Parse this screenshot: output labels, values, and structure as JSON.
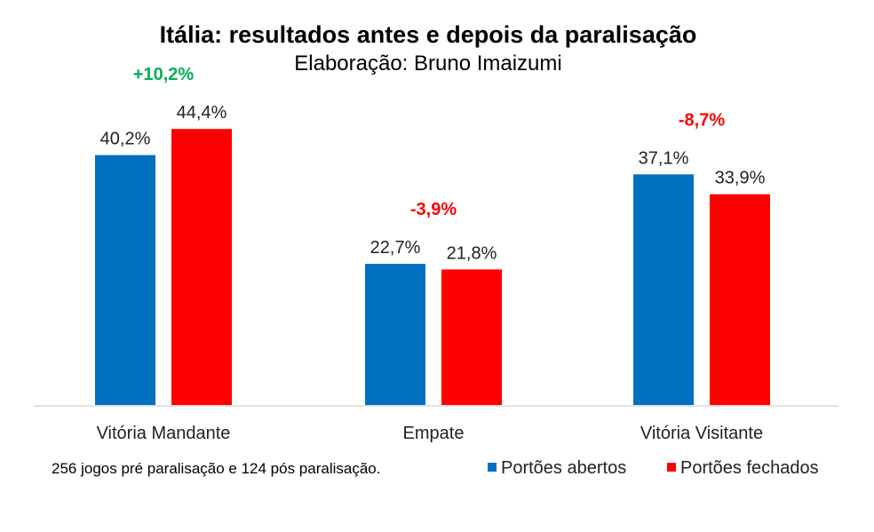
{
  "chart_data": {
    "type": "bar",
    "title": "Itália: resultados antes e depois da paralisação",
    "subtitle": "Elaboração: Bruno Imaizumi",
    "categories": [
      "Vitória Mandante",
      "Empate",
      "Vitória Visitante"
    ],
    "series": [
      {
        "name": "Portões abertos",
        "values": [
          40.2,
          22.7,
          37.1
        ],
        "labels": [
          "40,2%",
          "22,7%",
          "37,1%"
        ],
        "color": "#0070C0"
      },
      {
        "name": "Portões fechados",
        "values": [
          44.4,
          21.8,
          33.9
        ],
        "labels": [
          "44,4%",
          "21,8%",
          "33,9%"
        ],
        "color": "#FF0000"
      }
    ],
    "changes": [
      {
        "text": "+10,2%",
        "color": "#00B050"
      },
      {
        "text": "-3,9%",
        "color": "#FF0000"
      },
      {
        "text": "-8,7%",
        "color": "#FF0000"
      }
    ],
    "note": "256 jogos pré paralisação e 124 pós paralisação.",
    "ylim": [
      0,
      50
    ],
    "grid": false,
    "legend": "bottom-right"
  }
}
